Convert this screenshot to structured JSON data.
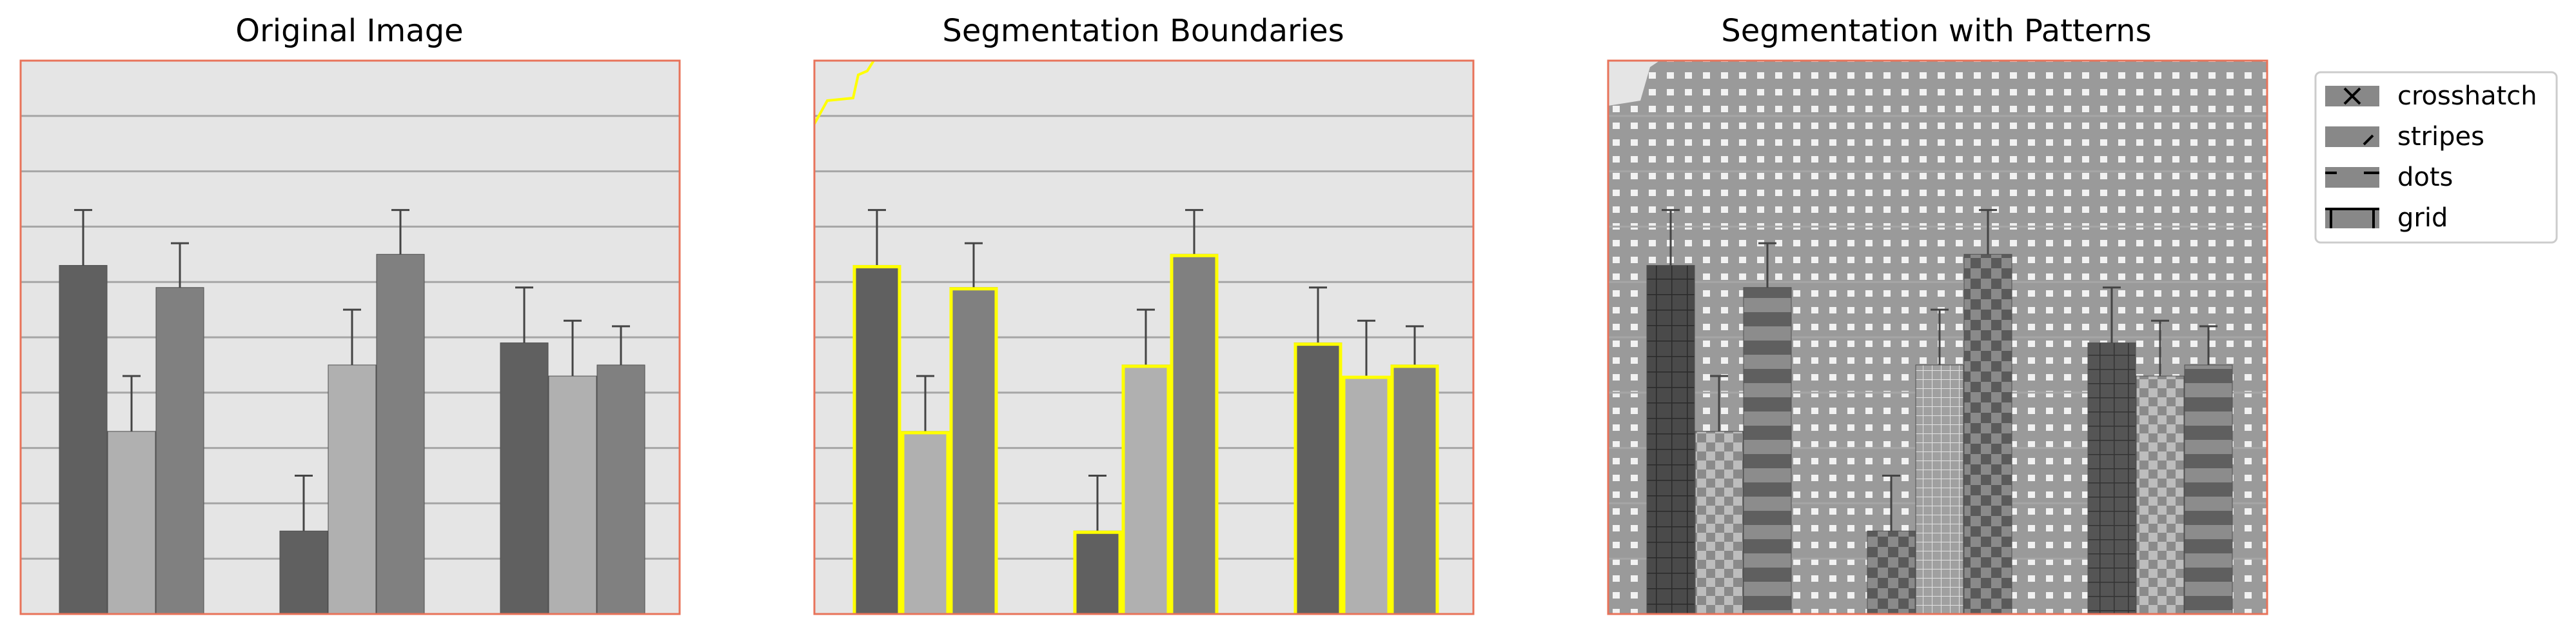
{
  "colors": {
    "plot_bg": "#e5e5e5",
    "frame": "#e8735a",
    "gridline": "#a6a6a6",
    "bar_dark": "#606060",
    "bar_light": "#b0b0b0",
    "bar_mid": "#808080",
    "boundary": "#ffff00",
    "error_bar": "#444444"
  },
  "legend": {
    "items": [
      {
        "label": "crosshatch",
        "icon": "crosshatch-icon"
      },
      {
        "label": "stripes",
        "icon": "stripes-icon"
      },
      {
        "label": "dots",
        "icon": "dots-icon"
      },
      {
        "label": "grid",
        "icon": "grid-icon"
      }
    ]
  },
  "chart_data": [
    {
      "type": "bar",
      "title": "Original Image",
      "groups": 3,
      "bars_per_group": 3,
      "ylim": [
        0,
        10
      ],
      "gridlines": [
        1,
        2,
        3,
        4,
        5,
        6,
        7,
        8,
        9
      ],
      "series": [
        {
          "values": [
            6.3,
            1.5,
            4.9
          ],
          "errors": [
            1.0,
            1.0,
            1.0
          ]
        },
        {
          "values": [
            3.3,
            4.5,
            4.3
          ],
          "errors": [
            1.0,
            1.0,
            1.0
          ]
        },
        {
          "values": [
            5.9,
            6.5,
            4.5
          ],
          "errors": [
            0.8,
            0.8,
            0.7
          ]
        }
      ],
      "grid": true,
      "overlay": "none"
    },
    {
      "type": "bar",
      "title": "Segmentation Boundaries",
      "groups": 3,
      "bars_per_group": 3,
      "ylim": [
        0,
        10
      ],
      "gridlines": [
        1,
        2,
        3,
        4,
        5,
        6,
        7,
        8,
        9
      ],
      "series": [
        {
          "values": [
            6.3,
            1.5,
            4.9
          ],
          "errors": [
            1.0,
            1.0,
            1.0
          ]
        },
        {
          "values": [
            3.3,
            4.5,
            4.3
          ],
          "errors": [
            1.0,
            1.0,
            1.0
          ]
        },
        {
          "values": [
            5.9,
            6.5,
            4.5
          ],
          "errors": [
            0.8,
            0.8,
            0.7
          ]
        }
      ],
      "grid": true,
      "overlay": "boundaries"
    },
    {
      "type": "bar",
      "title": "Segmentation with Patterns",
      "groups": 3,
      "bars_per_group": 3,
      "ylim": [
        0,
        10
      ],
      "gridlines": [
        1,
        2,
        3,
        4,
        5,
        6,
        7,
        8,
        9
      ],
      "series": [
        {
          "values": [
            6.3,
            1.5,
            4.9
          ],
          "errors": [
            1.0,
            1.0,
            1.0
          ]
        },
        {
          "values": [
            3.3,
            4.5,
            4.3
          ],
          "errors": [
            1.0,
            1.0,
            1.0
          ]
        },
        {
          "values": [
            5.9,
            6.5,
            4.5
          ],
          "errors": [
            0.8,
            0.8,
            0.7
          ]
        }
      ],
      "grid": true,
      "overlay": "patterns",
      "legend_position": "upper-right-outside"
    }
  ]
}
